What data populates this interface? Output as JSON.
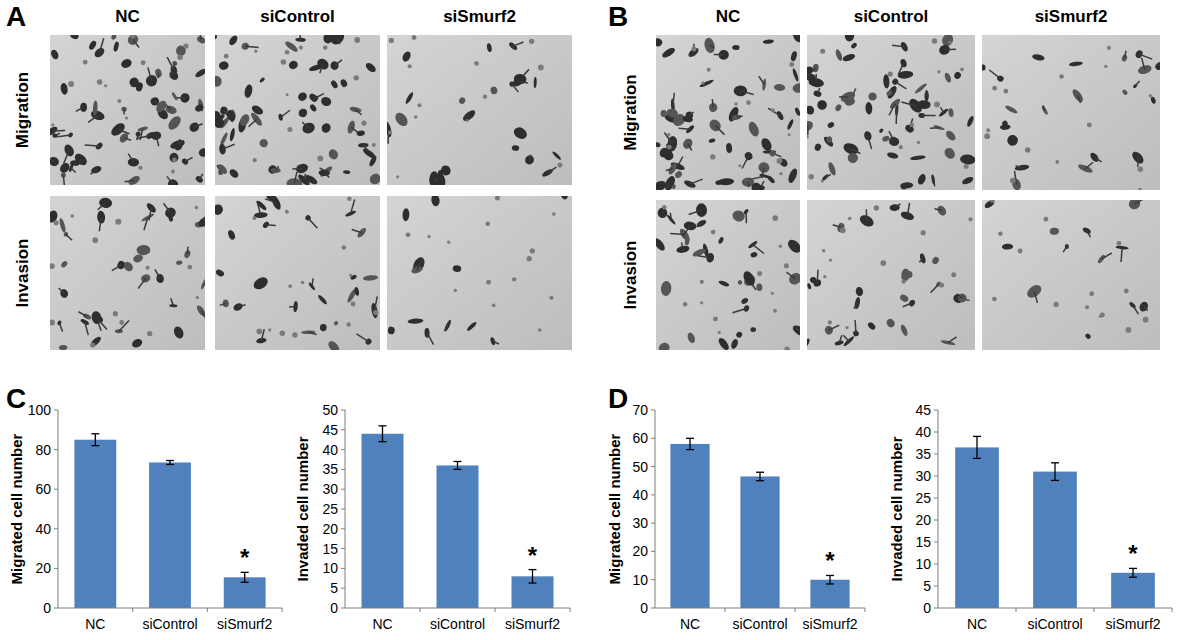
{
  "panels": [
    {
      "letter": "A",
      "columns": [
        "NC",
        "siControl",
        "siSmurf2"
      ],
      "rows": [
        "Migration",
        "Invasion"
      ]
    },
    {
      "letter": "B",
      "columns": [
        "NC",
        "siControl",
        "siSmurf2"
      ],
      "rows": [
        "Migration",
        "Invasion"
      ]
    },
    {
      "letter": "C"
    },
    {
      "letter": "D"
    }
  ],
  "chart_data": [
    {
      "type": "bar",
      "y_label": "Migrated cell number",
      "categories": [
        "NC",
        "siControl",
        "siSmurf2"
      ],
      "values": [
        85,
        73.5,
        15.5
      ],
      "errors": [
        3,
        1,
        2.5
      ],
      "color": "#4f81bd",
      "ylim": [
        0,
        100
      ],
      "yticks": [
        0,
        20,
        40,
        60,
        80,
        100
      ],
      "grid": false,
      "annotations": [
        {
          "text": "*",
          "category": "siSmurf2"
        }
      ]
    },
    {
      "type": "bar",
      "y_label": "Invaded cell number",
      "categories": [
        "NC",
        "siControl",
        "siSmurf2"
      ],
      "values": [
        44,
        36,
        8
      ],
      "errors": [
        2,
        1,
        1.7
      ],
      "color": "#4f81bd",
      "ylim": [
        0,
        50
      ],
      "yticks": [
        0,
        5,
        10,
        15,
        20,
        25,
        30,
        35,
        40,
        45,
        50
      ],
      "grid": false,
      "annotations": [
        {
          "text": "*",
          "category": "siSmurf2"
        }
      ]
    },
    {
      "type": "bar",
      "y_label": "Migrated cell number",
      "categories": [
        "NC",
        "siControl",
        "siSmurf2"
      ],
      "values": [
        58,
        46.5,
        10
      ],
      "errors": [
        2,
        1.5,
        1.5
      ],
      "color": "#4f81bd",
      "ylim": [
        0,
        70
      ],
      "yticks": [
        0,
        10,
        20,
        30,
        40,
        50,
        60,
        70
      ],
      "grid": false,
      "annotations": [
        {
          "text": "*",
          "category": "siSmurf2"
        }
      ]
    },
    {
      "type": "bar",
      "y_label": "Invaded cell number",
      "categories": [
        "NC",
        "siControl",
        "siSmurf2"
      ],
      "values": [
        36.5,
        31,
        8
      ],
      "errors": [
        2.5,
        2,
        1
      ],
      "color": "#4f81bd",
      "ylim": [
        0,
        45
      ],
      "yticks": [
        0,
        5,
        10,
        15,
        20,
        25,
        30,
        35,
        40,
        45
      ],
      "grid": false,
      "annotations": [
        {
          "text": "*",
          "category": "siSmurf2"
        }
      ]
    }
  ]
}
